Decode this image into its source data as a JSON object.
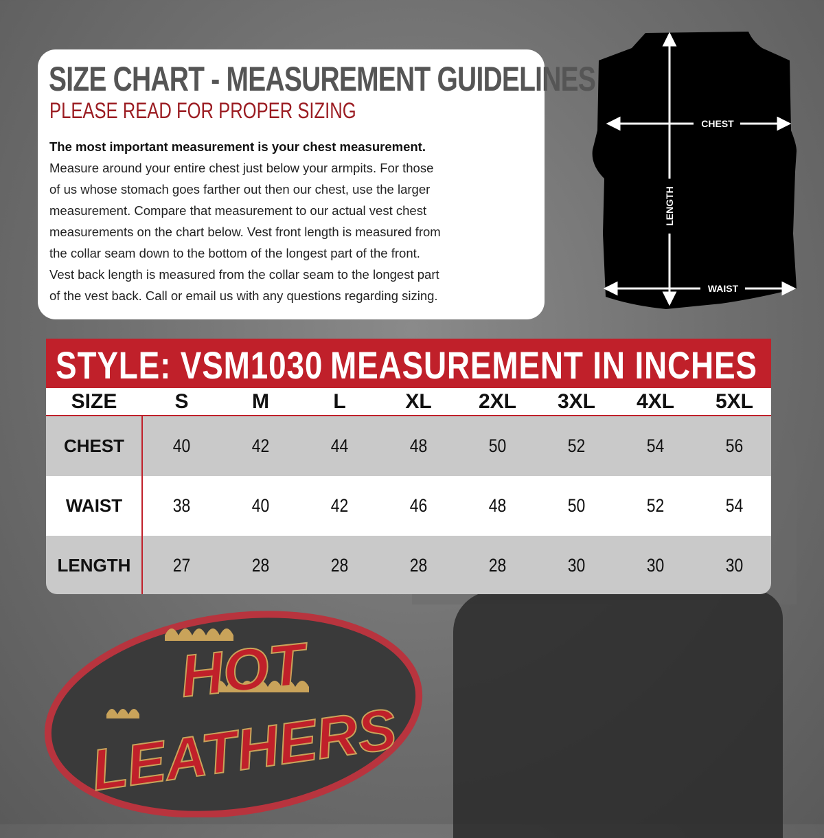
{
  "guidelines": {
    "title": "SIZE CHART - MEASUREMENT GUIDELINES",
    "subtitle": "PLEASE READ FOR PROPER SIZING",
    "lines": [
      "The most important measurement is your chest measurement.",
      "Measure around your entire chest just below your armpits.  For those",
      "of us whose stomach goes farther out then our chest, use the larger",
      "measurement. Compare that measurement to our actual vest chest",
      "measurements on the chart below.  Vest front length is measured from",
      "the collar seam down to the bottom of the longest part of the front.",
      "Vest back length is measured from the collar seam to the longest part",
      "of the vest back.  Call or email us with any questions regarding sizing."
    ]
  },
  "diagram": {
    "chest": "CHEST",
    "length": "LENGTH",
    "waist": "WAIST"
  },
  "table": {
    "style_label": "STYLE: VSM1030",
    "unit_label": "MEASUREMENT IN INCHES",
    "size_header": "SIZE",
    "sizes": [
      "S",
      "M",
      "L",
      "XL",
      "2XL",
      "3XL",
      "4XL",
      "5XL"
    ],
    "rows": [
      {
        "label": "CHEST",
        "values": [
          "40",
          "42",
          "44",
          "48",
          "50",
          "52",
          "54",
          "56"
        ]
      },
      {
        "label": "WAIST",
        "values": [
          "38",
          "40",
          "42",
          "46",
          "48",
          "50",
          "52",
          "54"
        ]
      },
      {
        "label": "LENGTH",
        "values": [
          "27",
          "28",
          "28",
          "28",
          "28",
          "30",
          "30",
          "30"
        ]
      }
    ]
  },
  "logo": {
    "line1": "HOT",
    "line2": "LEATHERS"
  },
  "colors": {
    "accent_red": "#c0202a",
    "subtitle_red": "#9b1c22",
    "logo_gold": "#c9a35a"
  }
}
